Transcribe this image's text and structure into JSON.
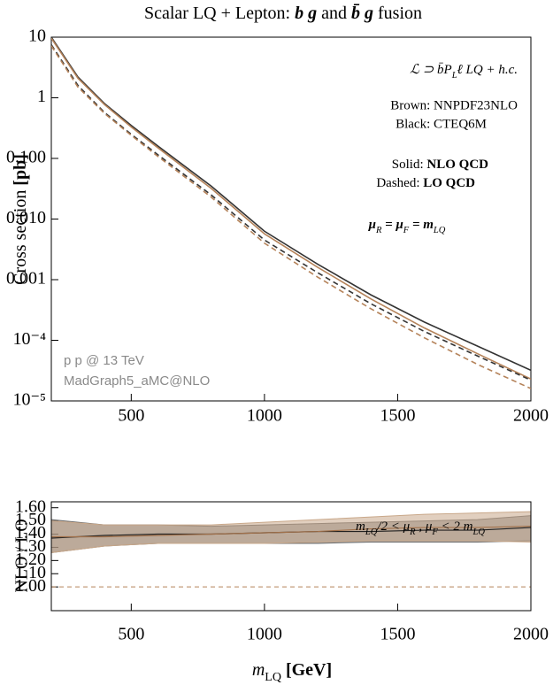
{
  "chart_data": [
    {
      "type": "line",
      "title_parts": [
        "Scalar LQ + Lepton: ",
        "b g",
        " and ",
        "b̄ g",
        " fusion"
      ],
      "ylabel_parts": [
        "Cross section ",
        "[pb]"
      ],
      "xlim": [
        200,
        2000
      ],
      "xticks": [
        500,
        1000,
        1500,
        2000
      ],
      "ylim": [
        1e-05,
        10
      ],
      "log_y": true,
      "yticks": [
        10,
        1,
        {
          "value": 0.1,
          "label": "0.100"
        },
        {
          "value": 0.01,
          "label": "0.010"
        },
        0.001,
        {
          "value": 0.0001,
          "label": "10⁻⁴"
        },
        {
          "value": 1e-05,
          "label": "10⁻⁵"
        }
      ],
      "x": [
        200,
        300,
        400,
        500,
        600,
        800,
        1000,
        1200,
        1400,
        1600,
        1800,
        2000
      ],
      "series": [
        {
          "color": "#333333",
          "dashed": false,
          "values": [
            10,
            2.2,
            0.8,
            0.35,
            0.16,
            0.035,
            0.0063,
            0.0018,
            0.00056,
            0.0002,
            8e-05,
            3.2e-05
          ]
        },
        {
          "color": "#b5835a",
          "dashed": false,
          "values": [
            9.6,
            2.1,
            0.77,
            0.33,
            0.15,
            0.032,
            0.0057,
            0.0016,
            0.00048,
            0.00016,
            6e-05,
            2.3e-05
          ]
        },
        {
          "color": "#333333",
          "dashed": true,
          "values": [
            7.5,
            1.6,
            0.57,
            0.25,
            0.115,
            0.025,
            0.0045,
            0.0013,
            0.0004,
            0.00014,
            5.5e-05,
            2.2e-05
          ]
        },
        {
          "color": "#b5835a",
          "dashed": true,
          "values": [
            7.2,
            1.5,
            0.55,
            0.24,
            0.108,
            0.023,
            0.004,
            0.0011,
            0.00033,
            0.00011,
            4e-05,
            1.6e-05
          ]
        }
      ],
      "annotations": {
        "coupling": [
          "ℒ ⊃ b̄P",
          "L",
          "ℓ LQ + h.c."
        ],
        "brown": "Brown: NNPDF23NLO",
        "black": "Black: CTEQ6M",
        "solid": [
          "Solid: ",
          "NLO QCD"
        ],
        "dashed": [
          "Dashed: ",
          "LO QCD"
        ],
        "scale": [
          "μ",
          "R",
          " = μ",
          "F",
          " = m",
          "LQ"
        ],
        "collider": "p p @ 13 TeV",
        "generator": "MadGraph5_aMC@NLO"
      }
    },
    {
      "type": "band",
      "ylabel": "NLO / LO",
      "xlabel_parts": [
        "m",
        "LQ",
        " [GeV]"
      ],
      "xlim": [
        200,
        2000
      ],
      "xticks": [
        500,
        1000,
        1500,
        2000
      ],
      "ylim": [
        0.82,
        1.645
      ],
      "yticks": [
        {
          "value": 1.0,
          "label": "1.00"
        },
        {
          "value": 1.1,
          "label": "1.10"
        },
        {
          "value": 1.2,
          "label": "1.20"
        },
        {
          "value": 1.3,
          "label": "1.30"
        },
        {
          "value": 1.4,
          "label": "1.40"
        },
        {
          "value": 1.5,
          "label": "1.50"
        },
        {
          "value": 1.6,
          "label": "1.60"
        }
      ],
      "reference": 1.0,
      "x": [
        200,
        400,
        600,
        800,
        1000,
        1200,
        1400,
        1600,
        1800,
        2000
      ],
      "bands": [
        {
          "color": "#6b6b6b",
          "upper": [
            1.51,
            1.47,
            1.47,
            1.46,
            1.47,
            1.48,
            1.49,
            1.5,
            1.51,
            1.54
          ],
          "lower": [
            1.26,
            1.31,
            1.33,
            1.33,
            1.33,
            1.33,
            1.34,
            1.34,
            1.34,
            1.35
          ],
          "central": [
            1.37,
            1.39,
            1.4,
            1.4,
            1.41,
            1.42,
            1.42,
            1.43,
            1.43,
            1.45
          ]
        },
        {
          "color": "#c9a88a",
          "upper": [
            1.5,
            1.47,
            1.47,
            1.47,
            1.49,
            1.51,
            1.53,
            1.55,
            1.56,
            1.57
          ],
          "lower": [
            1.26,
            1.31,
            1.33,
            1.33,
            1.33,
            1.34,
            1.35,
            1.35,
            1.35,
            1.34
          ],
          "central": [
            1.38,
            1.38,
            1.39,
            1.4,
            1.41,
            1.42,
            1.44,
            1.45,
            1.45,
            1.46
          ]
        }
      ],
      "annotation": [
        "m",
        "LQ",
        "/2 < μ",
        "R",
        " , μ",
        "F",
        " < 2 m",
        "LQ"
      ]
    }
  ]
}
